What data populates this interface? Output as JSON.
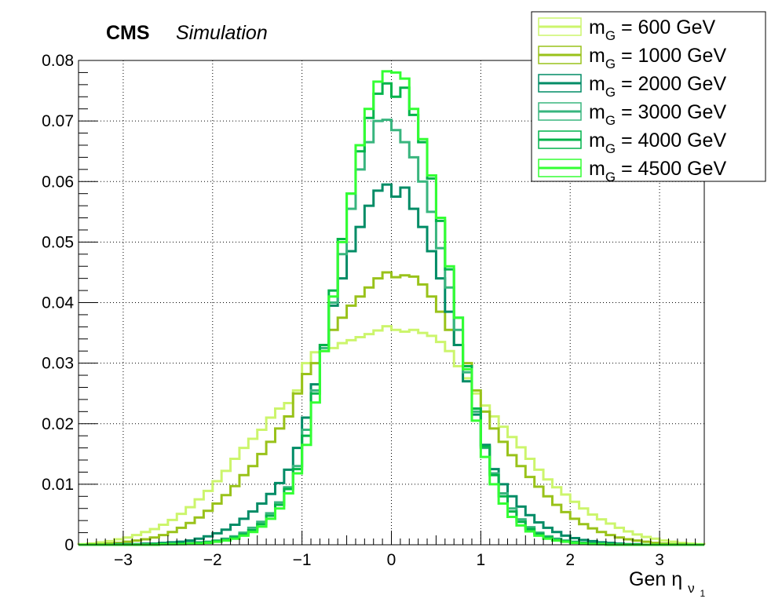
{
  "header": {
    "experiment": "CMS",
    "tag": "Simulation"
  },
  "chart_data": {
    "type": "histogram-step",
    "xlabel": "Gen η",
    "xlabel_subscript": "ν",
    "xlabel_subsubscript": "1",
    "xlim": [
      -3.5,
      3.5
    ],
    "ylim": [
      0,
      0.08
    ],
    "x_ticks": [
      "−3",
      "−2",
      "−1",
      "0",
      "1",
      "2",
      "3"
    ],
    "y_ticks": [
      "0",
      "0.01",
      "0.02",
      "0.03",
      "0.04",
      "0.05",
      "0.06",
      "0.07",
      "0.08"
    ],
    "grid": true,
    "legend_position": "top-right",
    "bin_edges": [
      -3.5,
      -3.4,
      -3.3,
      -3.2,
      -3.1,
      -3.0,
      -2.9,
      -2.8,
      -2.7,
      -2.6,
      -2.5,
      -2.4,
      -2.3,
      -2.2,
      -2.1,
      -2.0,
      -1.9,
      -1.8,
      -1.7,
      -1.6,
      -1.5,
      -1.4,
      -1.3,
      -1.2,
      -1.1,
      -1.0,
      -0.9,
      -0.8,
      -0.7,
      -0.6,
      -0.5,
      -0.4,
      -0.3,
      -0.2,
      -0.1,
      0.0,
      0.1,
      0.2,
      0.3,
      0.4,
      0.5,
      0.6,
      0.7,
      0.8,
      0.9,
      1.0,
      1.1,
      1.2,
      1.3,
      1.4,
      1.5,
      1.6,
      1.7,
      1.8,
      1.9,
      2.0,
      2.1,
      2.2,
      2.3,
      2.4,
      2.5,
      2.6,
      2.7,
      2.8,
      2.9,
      3.0,
      3.1,
      3.2,
      3.3,
      3.4,
      3.5
    ],
    "series": [
      {
        "legend_prefix": "m",
        "legend_sub": "G",
        "legend_suffix": " = 600 GeV",
        "color": "#ccf56c",
        "values": [
          0.0001,
          0.0002,
          0.0004,
          0.0006,
          0.0009,
          0.0012,
          0.0016,
          0.0021,
          0.0026,
          0.0033,
          0.0041,
          0.0051,
          0.0062,
          0.0075,
          0.0089,
          0.0105,
          0.0122,
          0.0142,
          0.016,
          0.0175,
          0.019,
          0.021,
          0.0225,
          0.0234,
          0.0255,
          0.03,
          0.0318,
          0.032,
          0.0325,
          0.0333,
          0.0338,
          0.0343,
          0.0348,
          0.0354,
          0.0361,
          0.0355,
          0.0352,
          0.0355,
          0.035,
          0.0345,
          0.0335,
          0.032,
          0.0295,
          0.0275,
          0.025,
          0.023,
          0.0212,
          0.0195,
          0.0178,
          0.0161,
          0.0142,
          0.0124,
          0.0108,
          0.0095,
          0.0083,
          0.0071,
          0.006,
          0.005,
          0.0042,
          0.0035,
          0.0028,
          0.0022,
          0.0017,
          0.0013,
          0.001,
          0.0007,
          0.0005,
          0.0003,
          0.0002,
          0.0001
        ]
      },
      {
        "legend_prefix": "m",
        "legend_sub": "G",
        "legend_suffix": " = 1000 GeV",
        "color": "#99c21a",
        "values": [
          0.0,
          0.0001,
          0.0001,
          0.0002,
          0.0003,
          0.0005,
          0.0007,
          0.0009,
          0.0012,
          0.0016,
          0.0021,
          0.0028,
          0.0036,
          0.0045,
          0.0056,
          0.0068,
          0.0082,
          0.0097,
          0.0115,
          0.013,
          0.015,
          0.017,
          0.0192,
          0.0212,
          0.025,
          0.0282,
          0.03,
          0.033,
          0.0355,
          0.0375,
          0.0395,
          0.041,
          0.0425,
          0.044,
          0.045,
          0.0442,
          0.0445,
          0.0443,
          0.043,
          0.041,
          0.0385,
          0.0355,
          0.033,
          0.03,
          0.0255,
          0.022,
          0.0192,
          0.017,
          0.0148,
          0.013,
          0.0112,
          0.0096,
          0.008,
          0.0066,
          0.0054,
          0.0043,
          0.0034,
          0.0027,
          0.0021,
          0.0016,
          0.0012,
          0.0009,
          0.0007,
          0.0005,
          0.0003,
          0.0002,
          0.0001,
          0.0001,
          0.0,
          0.0
        ]
      },
      {
        "legend_prefix": "m",
        "legend_sub": "G",
        "legend_suffix": " = 2000 GeV",
        "color": "#008c66",
        "values": [
          0.0,
          0.0,
          0.0,
          0.0,
          0.0001,
          0.0001,
          0.0001,
          0.0002,
          0.0002,
          0.0003,
          0.0004,
          0.0005,
          0.0007,
          0.001,
          0.0014,
          0.0019,
          0.0025,
          0.0033,
          0.0043,
          0.0055,
          0.0068,
          0.0084,
          0.0102,
          0.0124,
          0.016,
          0.021,
          0.0265,
          0.033,
          0.0395,
          0.044,
          0.0485,
          0.0525,
          0.056,
          0.0585,
          0.0595,
          0.0575,
          0.059,
          0.0555,
          0.0525,
          0.0485,
          0.044,
          0.0385,
          0.033,
          0.027,
          0.0215,
          0.0165,
          0.0125,
          0.01,
          0.008,
          0.0063,
          0.0049,
          0.0037,
          0.0028,
          0.0021,
          0.0015,
          0.0011,
          0.0008,
          0.0006,
          0.0004,
          0.0003,
          0.0002,
          0.0001,
          0.0001,
          0.0,
          0.0,
          0.0,
          0.0,
          0.0,
          0.0,
          0.0
        ]
      },
      {
        "legend_prefix": "m",
        "legend_sub": "G",
        "legend_suffix": " = 3000 GeV",
        "color": "#38b57e",
        "values": [
          0.0,
          0.0,
          0.0,
          0.0,
          0.0,
          0.0,
          0.0001,
          0.0001,
          0.0001,
          0.0001,
          0.0002,
          0.0002,
          0.0003,
          0.0004,
          0.0005,
          0.0007,
          0.001,
          0.0014,
          0.002,
          0.0028,
          0.0038,
          0.0052,
          0.007,
          0.0095,
          0.013,
          0.019,
          0.0255,
          0.0325,
          0.04,
          0.048,
          0.0555,
          0.062,
          0.0665,
          0.07,
          0.0702,
          0.0685,
          0.0665,
          0.064,
          0.06,
          0.055,
          0.049,
          0.0425,
          0.0355,
          0.0285,
          0.022,
          0.016,
          0.0118,
          0.0085,
          0.006,
          0.0042,
          0.0029,
          0.002,
          0.0014,
          0.001,
          0.0007,
          0.0005,
          0.0003,
          0.0002,
          0.0002,
          0.0001,
          0.0001,
          0.0,
          0.0,
          0.0,
          0.0,
          0.0,
          0.0,
          0.0,
          0.0,
          0.0
        ]
      },
      {
        "legend_prefix": "m",
        "legend_sub": "G",
        "legend_suffix": " = 4000 GeV",
        "color": "#00b34b",
        "values": [
          0.0,
          0.0,
          0.0,
          0.0,
          0.0,
          0.0,
          0.0,
          0.0,
          0.0001,
          0.0001,
          0.0001,
          0.0002,
          0.0002,
          0.0003,
          0.0004,
          0.0006,
          0.0008,
          0.0012,
          0.0017,
          0.0024,
          0.0034,
          0.0048,
          0.0066,
          0.0092,
          0.0125,
          0.018,
          0.025,
          0.033,
          0.042,
          0.0505,
          0.058,
          0.065,
          0.0705,
          0.0745,
          0.0762,
          0.074,
          0.0755,
          0.071,
          0.0665,
          0.0605,
          0.0535,
          0.0455,
          0.0375,
          0.0295,
          0.0225,
          0.0162,
          0.0115,
          0.008,
          0.0055,
          0.0038,
          0.0026,
          0.0018,
          0.0012,
          0.0008,
          0.0006,
          0.0004,
          0.0003,
          0.0002,
          0.0001,
          0.0001,
          0.0,
          0.0,
          0.0,
          0.0,
          0.0,
          0.0,
          0.0,
          0.0,
          0.0,
          0.0
        ]
      },
      {
        "legend_prefix": "m",
        "legend_sub": "G",
        "legend_suffix": " = 4500 GeV",
        "color": "#33ff33",
        "values": [
          0.0,
          0.0,
          0.0,
          0.0,
          0.0,
          0.0,
          0.0,
          0.0,
          0.0,
          0.0001,
          0.0001,
          0.0001,
          0.0002,
          0.0002,
          0.0003,
          0.0005,
          0.0007,
          0.001,
          0.0015,
          0.0021,
          0.003,
          0.0043,
          0.006,
          0.0085,
          0.0118,
          0.0165,
          0.0235,
          0.032,
          0.041,
          0.05,
          0.058,
          0.066,
          0.072,
          0.0765,
          0.0782,
          0.078,
          0.077,
          0.072,
          0.067,
          0.061,
          0.054,
          0.046,
          0.0375,
          0.029,
          0.0205,
          0.0145,
          0.01,
          0.0068,
          0.0046,
          0.0032,
          0.0022,
          0.0015,
          0.001,
          0.0007,
          0.0005,
          0.0003,
          0.0002,
          0.0001,
          0.0001,
          0.0,
          0.0,
          0.0,
          0.0,
          0.0,
          0.0,
          0.0,
          0.0,
          0.0,
          0.0,
          0.0
        ]
      }
    ]
  }
}
